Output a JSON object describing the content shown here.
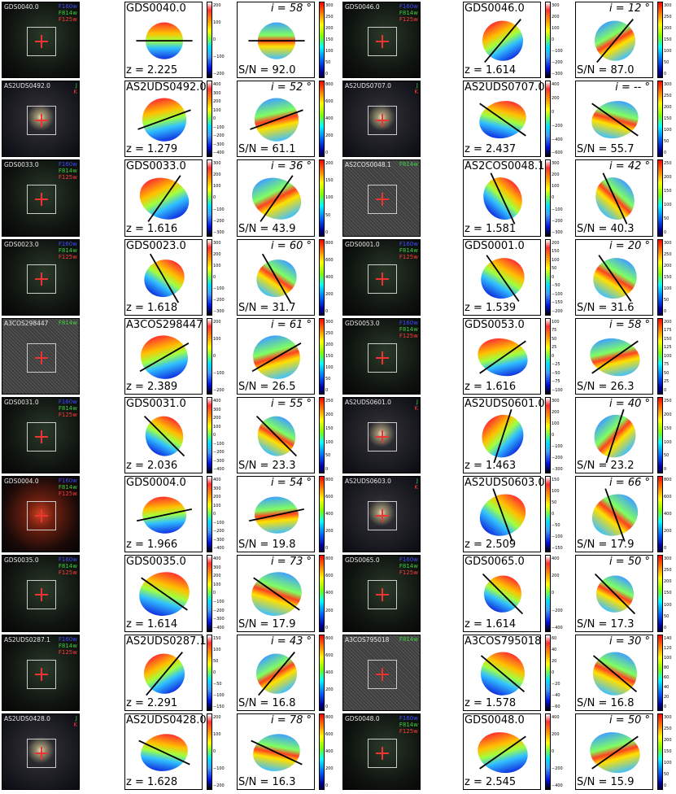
{
  "figure": {
    "rows": [
      {
        "left": {
          "name": "GDS0040.0",
          "filters": [
            "F160w",
            "F814w",
            "F125w"
          ],
          "z": "z = 2.225",
          "incl": "i = 58 °",
          "sn": "S/N = 92.0",
          "vel_ticks": [
            "200",
            "100",
            "0",
            "−100",
            "−200"
          ],
          "sn_ticks": [
            "300",
            "250",
            "200",
            "150",
            "100",
            "50",
            "0"
          ],
          "stamp": "dark",
          "angle": 0
        },
        "right": {
          "name": "GDS0046.0",
          "filters": [
            "F160w",
            "F814w",
            "F125w"
          ],
          "z": "z = 1.614",
          "incl": "i = 12 °",
          "sn": "S/N = 87.0",
          "vel_ticks": [
            "300",
            "200",
            "100",
            "0",
            "−100",
            "−200",
            "−300"
          ],
          "sn_ticks": [
            "300",
            "250",
            "200",
            "150",
            "100",
            "50",
            "0"
          ],
          "stamp": "dark",
          "angle": -50
        }
      },
      {
        "left": {
          "name": "AS2UDS0492.0",
          "filters": [
            "J",
            "K"
          ],
          "z": "z = 1.279",
          "incl": "i = 52 °",
          "sn": "S/N = 61.1",
          "vel_ticks": [
            "400",
            "300",
            "200",
            "100",
            "0",
            "−100",
            "−200",
            "−300",
            "−400"
          ],
          "sn_ticks": [
            "800",
            "600",
            "400",
            "200",
            "0"
          ],
          "stamp": "uds",
          "angle": -20
        },
        "right": {
          "name": "AS2UDS0707.0",
          "filters": [
            "J",
            "K"
          ],
          "z": "z = 2.437",
          "incl": "i = -- °",
          "sn": "S/N = 55.7",
          "vel_ticks": [
            "400",
            "200",
            "0",
            "−200",
            "−400",
            "−600"
          ],
          "sn_ticks": [
            "300",
            "250",
            "200",
            "150",
            "100",
            "50",
            "0"
          ],
          "stamp": "uds",
          "angle": 35
        }
      },
      {
        "left": {
          "name": "GDS0033.0",
          "filters": [
            "F160w",
            "F814w",
            "F125w"
          ],
          "z": "z = 1.616",
          "incl": "i = 36 °",
          "sn": "S/N = 43.9",
          "vel_ticks": [
            "300",
            "200",
            "100",
            "0",
            "−100",
            "−200",
            "−300"
          ],
          "sn_ticks": [
            "200",
            "150",
            "100",
            "50",
            "0"
          ],
          "stamp": "dark",
          "angle": -55
        },
        "right": {
          "name": "AS2COS0048.1",
          "filters": [
            "F814w"
          ],
          "z": "z = 1.581",
          "incl": "i = 42 °",
          "sn": "S/N = 40.3",
          "vel_ticks": [
            "300",
            "200",
            "100",
            "0",
            "−100",
            "−200",
            "−300"
          ],
          "sn_ticks": [
            "250",
            "200",
            "150",
            "100",
            "50",
            "0"
          ],
          "stamp": "grey",
          "angle": 65
        }
      },
      {
        "left": {
          "name": "GDS0023.0",
          "filters": [
            "F160w",
            "F814w",
            "F125w"
          ],
          "z": "z = 1.618",
          "incl": "i = 60 °",
          "sn": "S/N = 31.7",
          "vel_ticks": [
            "300",
            "200",
            "100",
            "0",
            "−100",
            "−200",
            "−300"
          ],
          "sn_ticks": [
            "800",
            "600",
            "400",
            "200",
            "0"
          ],
          "stamp": "dark",
          "angle": 60
        },
        "right": {
          "name": "GDS0001.0",
          "filters": [
            "F160w",
            "F814w",
            "F125w"
          ],
          "z": "z = 1.539",
          "incl": "i = 20 °",
          "sn": "S/N = 31.6",
          "vel_ticks": [
            "200",
            "150",
            "100",
            "50",
            "0",
            "−50",
            "−100",
            "−150",
            "−200"
          ],
          "sn_ticks": [
            "300",
            "250",
            "200",
            "150",
            "100",
            "50",
            "0"
          ],
          "stamp": "dark",
          "angle": 55
        }
      },
      {
        "left": {
          "name": "A3COS298447",
          "filters": [
            "F814w"
          ],
          "z": "z = 2.389",
          "incl": "i = 61 °",
          "sn": "S/N = 26.5",
          "vel_ticks": [
            "200",
            "100",
            "0",
            "−100",
            "−200"
          ],
          "sn_ticks": [
            "300",
            "250",
            "200",
            "150",
            "100",
            "50",
            "0"
          ],
          "stamp": "grey",
          "angle": -30
        },
        "right": {
          "name": "GDS0053.0",
          "filters": [
            "F160w",
            "F814w",
            "F125w"
          ],
          "z": "z = 1.616",
          "incl": "i = 58 °",
          "sn": "S/N = 26.3",
          "vel_ticks": [
            "100",
            "75",
            "50",
            "25",
            "0",
            "−25",
            "−50",
            "−75",
            "−100"
          ],
          "sn_ticks": [
            "200",
            "175",
            "150",
            "125",
            "100",
            "75",
            "50",
            "25",
            "0"
          ],
          "stamp": "dark",
          "angle": -35
        }
      },
      {
        "left": {
          "name": "GDS0031.0",
          "filters": [
            "F160w",
            "F814w",
            "F125w"
          ],
          "z": "z = 2.036",
          "incl": "i = 55 °",
          "sn": "S/N = 23.3",
          "vel_ticks": [
            "400",
            "300",
            "200",
            "100",
            "0",
            "−100",
            "−200",
            "−300",
            "−400"
          ],
          "sn_ticks": [
            "250",
            "200",
            "150",
            "100",
            "50",
            "0"
          ],
          "stamp": "dark",
          "angle": 45
        },
        "right": {
          "name": "AS2UDS0601.0",
          "filters": [
            "J",
            "K"
          ],
          "z": "z = 1.463",
          "incl": "i = 40 °",
          "sn": "S/N = 23.2",
          "vel_ticks": [
            "300",
            "200",
            "100",
            "0",
            "−100",
            "−200",
            "−300"
          ],
          "sn_ticks": [
            "250",
            "200",
            "150",
            "100",
            "50",
            "0"
          ],
          "stamp": "uds",
          "angle": -72
        }
      },
      {
        "left": {
          "name": "GDS0004.0",
          "filters": [
            "F160w",
            "F814w",
            "F125w"
          ],
          "z": "z = 1.966",
          "incl": "i = 54 °",
          "sn": "S/N = 19.8",
          "vel_ticks": [
            "400",
            "300",
            "200",
            "100",
            "0",
            "−100",
            "−200",
            "−300",
            "−400"
          ],
          "sn_ticks": [
            "800",
            "600",
            "400",
            "200",
            "0"
          ],
          "stamp": "red",
          "angle": -12
        },
        "right": {
          "name": "AS2UDS0603.0",
          "filters": [
            "J",
            "K"
          ],
          "z": "z = 2.509",
          "incl": "i = 66 °",
          "sn": "S/N = 17.9",
          "vel_ticks": [
            "150",
            "100",
            "50",
            "0",
            "−50",
            "−100",
            "−150"
          ],
          "sn_ticks": [
            "800",
            "600",
            "400",
            "200",
            "0"
          ],
          "stamp": "uds",
          "angle": 70
        }
      },
      {
        "left": {
          "name": "GDS0035.0",
          "filters": [
            "F160w",
            "F814w",
            "F125w"
          ],
          "z": "z = 1.614",
          "incl": "i = 73 °",
          "sn": "S/N = 17.9",
          "vel_ticks": [
            "400",
            "300",
            "200",
            "100",
            "0",
            "−100",
            "−200",
            "−300",
            "−400"
          ],
          "sn_ticks": [
            "800",
            "600",
            "400",
            "200",
            "0"
          ],
          "stamp": "dark",
          "angle": 35
        },
        "right": {
          "name": "GDS0065.0",
          "filters": [
            "F160w",
            "F814w",
            "F125w"
          ],
          "z": "z = 1.614",
          "incl": "i = 50 °",
          "sn": "S/N = 17.3",
          "vel_ticks": [
            "400",
            "200",
            "0",
            "−200",
            "−400"
          ],
          "sn_ticks": [
            "300",
            "250",
            "200",
            "150",
            "100",
            "50",
            "0"
          ],
          "stamp": "dark",
          "angle": 45
        }
      },
      {
        "left": {
          "name": "AS2UDS0287.1",
          "filters": [
            "F160w",
            "F814w",
            "F125w"
          ],
          "z": "z = 2.291",
          "incl": "i = 43 °",
          "sn": "S/N = 16.8",
          "vel_ticks": [
            "150",
            "100",
            "50",
            "0",
            "−50",
            "−100",
            "−150"
          ],
          "sn_ticks": [
            "800",
            "600",
            "400",
            "200",
            "0"
          ],
          "stamp": "dark",
          "angle": -50
        },
        "right": {
          "name": "A3COS795018",
          "filters": [
            "F814w"
          ],
          "z": "z = 1.578",
          "incl": "i = 30 °",
          "sn": "S/N = 16.8",
          "vel_ticks": [
            "60",
            "40",
            "20",
            "0",
            "−20",
            "−40",
            "−60"
          ],
          "sn_ticks": [
            "140",
            "120",
            "100",
            "80",
            "60",
            "40",
            "20",
            "0"
          ],
          "stamp": "grey",
          "angle": 40
        }
      },
      {
        "left": {
          "name": "AS2UDS0428.0",
          "filters": [
            "J",
            "K"
          ],
          "z": "z = 1.628",
          "incl": "i = 78 °",
          "sn": "S/N = 16.3",
          "vel_ticks": [
            "200",
            "100",
            "0",
            "−100",
            "−200"
          ],
          "sn_ticks": [
            "800",
            "600",
            "400",
            "200",
            "0"
          ],
          "stamp": "uds",
          "angle": 25
        },
        "right": {
          "name": "GDS0048.0",
          "filters": [
            "F160w",
            "F814w",
            "F125w"
          ],
          "z": "z = 2.545",
          "incl": "i = 50 °",
          "sn": "S/N = 15.9",
          "vel_ticks": [
            "400",
            "200",
            "0",
            "−200",
            "−400"
          ],
          "sn_ticks": [
            "300",
            "250",
            "200",
            "150",
            "100",
            "50",
            "0"
          ],
          "stamp": "dark",
          "angle": -35
        }
      }
    ]
  },
  "colors": {
    "filter_blue": "#3b4bff",
    "filter_green": "#3fcf3f",
    "filter_red": "#ff3a3a"
  }
}
